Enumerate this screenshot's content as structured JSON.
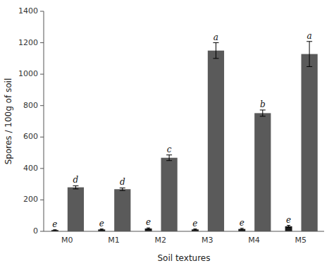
{
  "chart_data": {
    "type": "bar",
    "xlabel": "Soil textures",
    "ylabel": "Spores / 100g of soil",
    "categories": [
      "M0",
      "M1",
      "M2",
      "M3",
      "M4",
      "M5"
    ],
    "series": [
      {
        "color": "#1a1a1a",
        "values": [
          8,
          12,
          18,
          12,
          15,
          32
        ],
        "errors": [
          2,
          3,
          4,
          3,
          4,
          6
        ],
        "annotations": [
          "e",
          "e",
          "e",
          "e",
          "e",
          "e"
        ]
      },
      {
        "color": "#5a5a5a",
        "values": [
          280,
          268,
          468,
          1150,
          752,
          1128
        ],
        "errors": [
          10,
          8,
          18,
          50,
          20,
          80
        ],
        "annotations": [
          "d",
          "d",
          "c",
          "a",
          "b",
          "a"
        ]
      }
    ],
    "ylim": [
      0,
      1400
    ],
    "yticks": [
      0,
      200,
      400,
      600,
      800,
      1000,
      1200,
      1400
    ],
    "grid": false
  }
}
